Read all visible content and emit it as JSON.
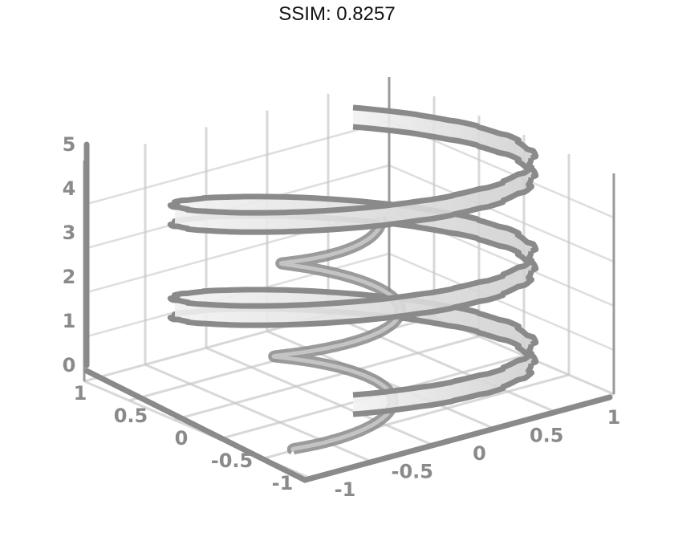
{
  "title": "SSIM: 0.8257",
  "chart_data": {
    "type": "surface3d",
    "title": "SSIM: 0.8257",
    "x_ticks": [
      "-1",
      "-0.5",
      "0",
      "0.5",
      "1"
    ],
    "y_ticks": [
      "-1",
      "-0.5",
      "0",
      "0.5",
      "1"
    ],
    "z_ticks": [
      "0",
      "1",
      "2",
      "3",
      "4",
      "5"
    ],
    "xlim": [
      -1,
      1
    ],
    "ylim": [
      -1,
      1
    ],
    "zlim": [
      0,
      5
    ],
    "grid": true,
    "series": [
      {
        "kind": "helical-ribbon",
        "turns": 2.5,
        "z_range": [
          0,
          5
        ],
        "color": "#8a8a8a"
      },
      {
        "kind": "inner-helix",
        "turns": 2.5,
        "z_range": [
          0,
          5
        ],
        "color": "#8a8a8a"
      }
    ],
    "colors": {
      "line": "#8a8a8a",
      "grid": "#c8c8c8",
      "fill": "#e6e6e6"
    }
  }
}
